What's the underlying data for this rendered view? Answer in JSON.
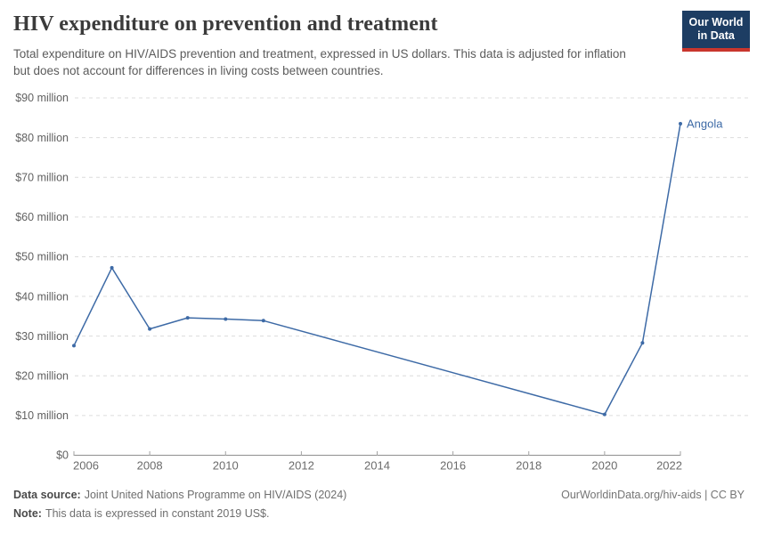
{
  "header": {
    "title": "HIV expenditure on prevention and treatment",
    "subtitle": "Total expenditure on HIV/AIDS prevention and treatment, expressed in US dollars. This data is adjusted for inflation but does not account for differences in living costs between countries."
  },
  "logo": {
    "line1": "Our World",
    "line2": "in Data",
    "background": "#1d3d63",
    "accent": "#c9362d"
  },
  "chart_data": {
    "type": "line",
    "title": "HIV expenditure on prevention and treatment",
    "series": [
      {
        "name": "Angola",
        "color": "#3d6aa6",
        "points": [
          [
            2006,
            27.6
          ],
          [
            2007,
            47.2
          ],
          [
            2008,
            31.8
          ],
          [
            2009,
            34.6
          ],
          [
            2010,
            34.3
          ],
          [
            2011,
            33.9
          ],
          [
            2020,
            10.3
          ],
          [
            2021,
            28.3
          ],
          [
            2022,
            83.5
          ]
        ],
        "data_gap_years": [
          2012,
          2019
        ]
      }
    ],
    "x_axis": {
      "range": [
        2006,
        2022
      ],
      "ticks": [
        2006,
        2008,
        2010,
        2012,
        2014,
        2016,
        2018,
        2020,
        2022
      ]
    },
    "y_axis": {
      "range": [
        0,
        90
      ],
      "unit": "US dollars",
      "ticks": [
        0,
        10,
        20,
        30,
        40,
        50,
        60,
        70,
        80,
        90
      ],
      "tick_labels": [
        "$0",
        "$10 million",
        "$20 million",
        "$30 million",
        "$40 million",
        "$50 million",
        "$60 million",
        "$70 million",
        "$80 million",
        "$90 million"
      ]
    },
    "grid": "horizontal-dashed",
    "legend": "end-of-line-label"
  },
  "footer": {
    "source_label": "Data source:",
    "source_text": "Joint United Nations Programme on HIV/AIDS (2024)",
    "note_label": "Note:",
    "note_text": "This data is expressed in constant 2019 US$.",
    "credit": "OurWorldinData.org/hiv-aids | CC BY"
  }
}
